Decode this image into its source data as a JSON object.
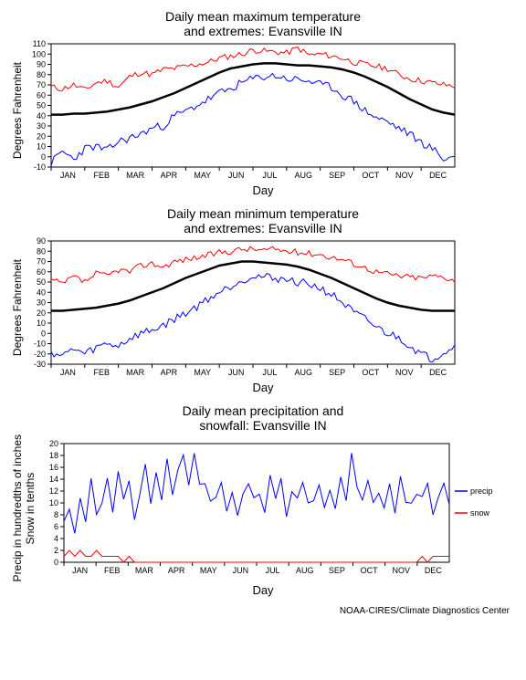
{
  "months": [
    "JAN",
    "FEB",
    "MAR",
    "APR",
    "MAY",
    "JUN",
    "JUL",
    "AUG",
    "SEP",
    "OCT",
    "NOV",
    "DEC"
  ],
  "colors": {
    "mean": "#000000",
    "max": "#ff0000",
    "min": "#0000ff",
    "precip": "#0000ff",
    "snow": "#ff0000",
    "background": "#ffffff",
    "axis": "#000000"
  },
  "footer": "NOAA-CIRES/Climate Diagnostics Center",
  "chart1": {
    "title": "Daily mean maximum temperature\nand extremes: Evansville IN",
    "ylabel": "Degrees Fahrenheit",
    "xlabel": "Day",
    "ylim": [
      -10,
      110
    ],
    "ytick_step": 10,
    "line_width_mean": 2.5,
    "line_width_ext": 1,
    "mean": [
      41,
      41,
      42,
      42,
      43,
      44,
      46,
      48,
      51,
      54,
      58,
      62,
      67,
      72,
      77,
      82,
      86,
      88,
      90,
      91,
      91,
      90,
      89,
      89,
      88,
      87,
      85,
      82,
      78,
      73,
      68,
      62,
      56,
      51,
      46,
      43,
      41
    ],
    "max": [
      68,
      66,
      70,
      65,
      72,
      74,
      68,
      78,
      82,
      80,
      85,
      86,
      88,
      90,
      92,
      96,
      98,
      100,
      104,
      103,
      102,
      101,
      106,
      99,
      100,
      98,
      96,
      92,
      90,
      88,
      86,
      80,
      76,
      74,
      72,
      70,
      69
    ],
    "min": [
      -6,
      5,
      -2,
      8,
      10,
      6,
      15,
      18,
      22,
      28,
      30,
      40,
      44,
      50,
      56,
      62,
      66,
      72,
      76,
      78,
      79,
      76,
      75,
      74,
      70,
      68,
      60,
      54,
      45,
      38,
      34,
      28,
      22,
      14,
      8,
      -2,
      0
    ]
  },
  "chart2": {
    "title": "Daily mean minimum temperature\nand extremes: Evansville IN",
    "ylabel": "Degrees Fahrenheit",
    "xlabel": "Day",
    "ylim": [
      -30,
      90
    ],
    "ytick_step": 10,
    "line_width_mean": 2.5,
    "line_width_ext": 1,
    "mean": [
      22,
      22,
      23,
      24,
      25,
      27,
      29,
      32,
      36,
      40,
      44,
      49,
      54,
      58,
      62,
      66,
      68,
      70,
      70,
      69,
      68,
      67,
      65,
      62,
      58,
      54,
      49,
      44,
      39,
      34,
      30,
      27,
      25,
      23,
      22,
      22,
      22
    ],
    "max": [
      52,
      48,
      55,
      50,
      58,
      56,
      62,
      60,
      66,
      68,
      65,
      70,
      72,
      74,
      76,
      79,
      80,
      82,
      82,
      81,
      82,
      80,
      79,
      78,
      77,
      74,
      72,
      68,
      64,
      60,
      58,
      56,
      55,
      54,
      56,
      55,
      52
    ],
    "min": [
      -18,
      -22,
      -15,
      -20,
      -14,
      -10,
      -12,
      -5,
      0,
      3,
      8,
      14,
      20,
      26,
      34,
      40,
      46,
      52,
      56,
      55,
      54,
      52,
      50,
      48,
      44,
      38,
      30,
      20,
      14,
      6,
      0,
      -4,
      -12,
      -20,
      -25,
      -18,
      -12
    ]
  },
  "chart3": {
    "title": "Daily mean precipitation and\nsnowfall: Evansville IN",
    "ylabel": "Precip in hundredths of inches\nSnow in tenths",
    "xlabel": "Day",
    "ylim": [
      0,
      20
    ],
    "ytick_step": 2,
    "line_width": 1,
    "precip": [
      8,
      10,
      6,
      12,
      8,
      14,
      7,
      11,
      13,
      9,
      15,
      10,
      14,
      8,
      12,
      16,
      11,
      14,
      10,
      17,
      12,
      15,
      18,
      13,
      19,
      12,
      14,
      10,
      11,
      13,
      9,
      12,
      8,
      11,
      14,
      10,
      12,
      9,
      15,
      11,
      13,
      8,
      12,
      10,
      14,
      9,
      11,
      13,
      10,
      12,
      9,
      14,
      11,
      18,
      12,
      10,
      14,
      9,
      12,
      10,
      13,
      8,
      15,
      11,
      9,
      12,
      10,
      13,
      8,
      11,
      14,
      10
    ],
    "snow": [
      1,
      2,
      1,
      2,
      1,
      1,
      2,
      1,
      1,
      1,
      1,
      0,
      1,
      0,
      0,
      0,
      0,
      0,
      0,
      0,
      0,
      0,
      0,
      0,
      0,
      0,
      0,
      0,
      0,
      0,
      0,
      0,
      0,
      0,
      0,
      0,
      0,
      0,
      0,
      0,
      0,
      0,
      0,
      0,
      0,
      0,
      0,
      0,
      0,
      0,
      0,
      0,
      0,
      0,
      0,
      0,
      0,
      0,
      0,
      0,
      0,
      0,
      0,
      0,
      0,
      0,
      1,
      0,
      1,
      1,
      1,
      1
    ],
    "legend": {
      "precip": "precip",
      "snow": "snow"
    }
  }
}
